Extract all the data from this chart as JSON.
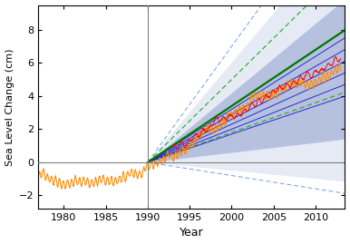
{
  "xlabel": "Year",
  "ylabel": "Sea Level Change (cm)",
  "xlim": [
    1977.0,
    2013.5
  ],
  "ylim": [
    -2.8,
    9.5
  ],
  "yticks": [
    -2,
    0,
    2,
    4,
    6,
    8
  ],
  "xticks": [
    1980,
    1985,
    1990,
    1995,
    2000,
    2005,
    2010
  ],
  "vertical_line_x": 1990,
  "bg_color": "#ffffff",
  "orange_color": "#FF8800",
  "red_color": "#FF0000",
  "blue_center_color": "#1111CC",
  "blue_shade_inner_color": "#8899cc",
  "blue_shade_outer_color": "#aabbdd",
  "green_line_color": "#007700",
  "green_dash_color": "#22aa22",
  "blue_dash_color": "#7799ee",
  "proj_start": 1990.0,
  "proj_end": 2013.5,
  "blue_lines_rates": [
    0.17,
    0.2,
    0.23,
    0.26,
    0.29,
    0.32
  ],
  "blue_inner_upper_rate": 0.42,
  "blue_inner_lower_rate": 0.06,
  "blue_outer_upper_rate": 0.6,
  "blue_outer_lower_rate": -0.05,
  "blue_dash_upper_rate": 0.7,
  "blue_dash_lower_rate": -0.08,
  "green_solid_rate": 0.34,
  "green_dash_upper_rate": 0.5,
  "green_dash_lower_rate": 0.18
}
